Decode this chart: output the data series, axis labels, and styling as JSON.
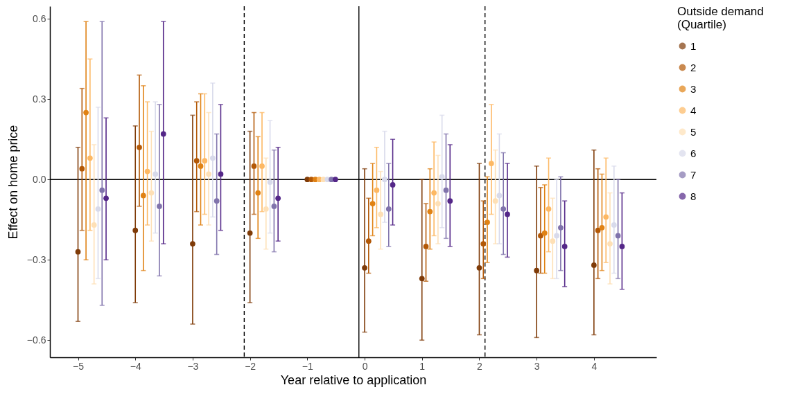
{
  "chart_data": {
    "type": "scatter",
    "xlabel": "Year relative to application",
    "ylabel": "Effect on home price",
    "legend_title": "Outside demand\n(Quartile)",
    "legend": "right",
    "marker": "circle",
    "xlim": [
      -5.49,
      5.09
    ],
    "xticks": [
      {
        "value": -5,
        "label": "−5"
      },
      {
        "value": -4,
        "label": "−4"
      },
      {
        "value": -3,
        "label": "−3"
      },
      {
        "value": -2,
        "label": "−2"
      },
      {
        "value": -1,
        "label": "−1"
      },
      0,
      1,
      2,
      3,
      4
    ],
    "ylim": [
      -0.664,
      0.647
    ],
    "yticks": [
      {
        "value": -0.6,
        "label": "−0.6"
      },
      {
        "value": -0.3,
        "label": "−0.3"
      },
      {
        "value": 0,
        "label": "0.0"
      },
      {
        "value": 0.3,
        "label": "0.3"
      },
      {
        "value": 0.6,
        "label": "0.6"
      }
    ],
    "ref_lines": [
      {
        "axis": "y",
        "value": 0,
        "line_style": "solid",
        "color": "#000000"
      },
      {
        "axis": "x",
        "value": -0.1,
        "line_style": "solid",
        "color": "#000000"
      },
      {
        "axis": "x",
        "value": -2.1,
        "line_style": "dashed",
        "color": "#000000"
      },
      {
        "axis": "x",
        "value": 2.1,
        "line_style": "dashed",
        "color": "#000000"
      }
    ],
    "series": [
      {
        "name": "1",
        "color": "#7f3b08",
        "x": [
          -5,
          -4,
          -3,
          -2,
          -1,
          0,
          1,
          2,
          3,
          4
        ],
        "values": [
          -0.27,
          -0.19,
          -0.24,
          -0.2,
          0,
          -0.33,
          -0.37,
          -0.33,
          -0.34,
          -0.32
        ],
        "errors": [
          [
            -0.53,
            0.12
          ],
          [
            -0.46,
            0.2
          ],
          [
            -0.54,
            0.24
          ],
          [
            -0.46,
            0.18
          ],
          null,
          [
            -0.57,
            0.04
          ],
          [
            -0.6,
            0.0
          ],
          [
            -0.58,
            0.06
          ],
          [
            -0.59,
            0.05
          ],
          [
            -0.58,
            0.11
          ]
        ]
      },
      {
        "name": "2",
        "color": "#b35806",
        "x": [
          -4.93,
          -3.93,
          -2.93,
          -1.93,
          -0.93,
          0.07,
          1.07,
          2.07,
          3.07,
          4.07
        ],
        "values": [
          0.04,
          0.12,
          0.07,
          0.05,
          0,
          -0.23,
          -0.25,
          -0.24,
          -0.21,
          -0.19
        ],
        "errors": [
          [
            -0.19,
            0.34
          ],
          [
            -0.1,
            0.39
          ],
          [
            -0.12,
            0.29
          ],
          [
            -0.13,
            0.25
          ],
          null,
          [
            -0.35,
            -0.07
          ],
          [
            -0.38,
            -0.09
          ],
          [
            -0.37,
            -0.08
          ],
          [
            -0.35,
            -0.03
          ],
          [
            -0.37,
            0.04
          ]
        ]
      },
      {
        "name": "3",
        "color": "#e08214",
        "x": [
          -4.86,
          -3.86,
          -2.86,
          -1.86,
          -0.86,
          0.14,
          1.14,
          2.14,
          3.14,
          4.14
        ],
        "values": [
          0.25,
          -0.06,
          0.05,
          -0.05,
          0,
          -0.09,
          -0.12,
          -0.16,
          -0.2,
          -0.18
        ],
        "errors": [
          [
            -0.3,
            0.59
          ],
          [
            -0.34,
            0.35
          ],
          [
            -0.17,
            0.32
          ],
          [
            -0.22,
            0.16
          ],
          null,
          [
            -0.21,
            0.06
          ],
          [
            -0.26,
            0.04
          ],
          [
            -0.31,
            0.01
          ],
          [
            -0.35,
            -0.02
          ],
          [
            -0.34,
            0.02
          ]
        ]
      },
      {
        "name": "4",
        "color": "#fdb863",
        "x": [
          -4.79,
          -3.79,
          -2.79,
          -1.79,
          -0.79,
          0.21,
          1.21,
          2.21,
          3.21,
          4.21
        ],
        "values": [
          0.08,
          0.03,
          0.07,
          0.05,
          0,
          -0.04,
          -0.05,
          0.06,
          -0.11,
          -0.14
        ],
        "errors": [
          [
            -0.19,
            0.45
          ],
          [
            -0.17,
            0.29
          ],
          [
            -0.13,
            0.32
          ],
          [
            -0.12,
            0.25
          ],
          null,
          [
            -0.18,
            0.12
          ],
          [
            -0.21,
            0.14
          ],
          [
            -0.13,
            0.28
          ],
          [
            -0.27,
            0.08
          ],
          [
            -0.31,
            0.08
          ]
        ]
      },
      {
        "name": "5",
        "color": "#fee0b6",
        "x": [
          -4.72,
          -3.72,
          -2.72,
          -1.72,
          -0.72,
          0.28,
          1.28,
          2.28,
          3.28,
          4.28
        ],
        "values": [
          -0.17,
          -0.05,
          0.02,
          -0.11,
          0,
          -0.13,
          -0.09,
          -0.08,
          -0.23,
          -0.24
        ],
        "errors": [
          [
            -0.39,
            0.13
          ],
          [
            -0.23,
            0.18
          ],
          [
            -0.17,
            0.25
          ],
          [
            -0.26,
            0.08
          ],
          null,
          [
            -0.26,
            0.03
          ],
          [
            -0.24,
            0.09
          ],
          [
            -0.24,
            0.11
          ],
          [
            -0.37,
            -0.07
          ],
          [
            -0.39,
            -0.05
          ]
        ]
      },
      {
        "name": "6",
        "color": "#d8daeb",
        "x": [
          -4.65,
          -3.65,
          -2.65,
          -1.65,
          -0.65,
          0.35,
          1.35,
          2.35,
          3.35,
          4.35
        ],
        "values": [
          -0.11,
          0.02,
          0.08,
          -0.01,
          0,
          0.0,
          0.01,
          -0.06,
          -0.21,
          -0.17
        ],
        "errors": [
          [
            -0.37,
            0.27
          ],
          [
            -0.2,
            0.29
          ],
          [
            -0.14,
            0.36
          ],
          [
            -0.2,
            0.22
          ],
          null,
          [
            -0.16,
            0.18
          ],
          [
            -0.18,
            0.24
          ],
          [
            -0.24,
            0.17
          ],
          [
            -0.37,
            0.0
          ],
          [
            -0.35,
            0.05
          ]
        ]
      },
      {
        "name": "7",
        "color": "#8073ac",
        "x": [
          -4.58,
          -3.58,
          -2.58,
          -1.58,
          -0.58,
          0.42,
          1.42,
          2.42,
          3.42,
          4.42
        ],
        "values": [
          -0.04,
          -0.1,
          -0.08,
          -0.1,
          0,
          -0.11,
          -0.04,
          -0.11,
          -0.18,
          -0.21
        ],
        "errors": [
          [
            -0.47,
            0.59
          ],
          [
            -0.36,
            0.28
          ],
          [
            -0.28,
            0.17
          ],
          [
            -0.27,
            0.11
          ],
          null,
          [
            -0.25,
            0.06
          ],
          [
            -0.22,
            0.17
          ],
          [
            -0.28,
            0.1
          ],
          [
            -0.34,
            0.01
          ],
          [
            -0.37,
            0.0
          ]
        ]
      },
      {
        "name": "8",
        "color": "#542788",
        "x": [
          -4.51,
          -3.51,
          -2.51,
          -1.51,
          -0.51,
          0.49,
          1.49,
          2.49,
          3.49,
          4.49
        ],
        "values": [
          -0.07,
          0.17,
          0.02,
          -0.07,
          0,
          -0.02,
          -0.08,
          -0.13,
          -0.25,
          -0.25
        ],
        "errors": [
          [
            -0.3,
            0.23
          ],
          [
            -0.24,
            0.59
          ],
          [
            -0.19,
            0.28
          ],
          [
            -0.23,
            0.12
          ],
          null,
          [
            -0.17,
            0.15
          ],
          [
            -0.25,
            0.13
          ],
          [
            -0.29,
            0.06
          ],
          [
            -0.4,
            -0.08
          ],
          [
            -0.41,
            -0.05
          ]
        ]
      }
    ]
  }
}
